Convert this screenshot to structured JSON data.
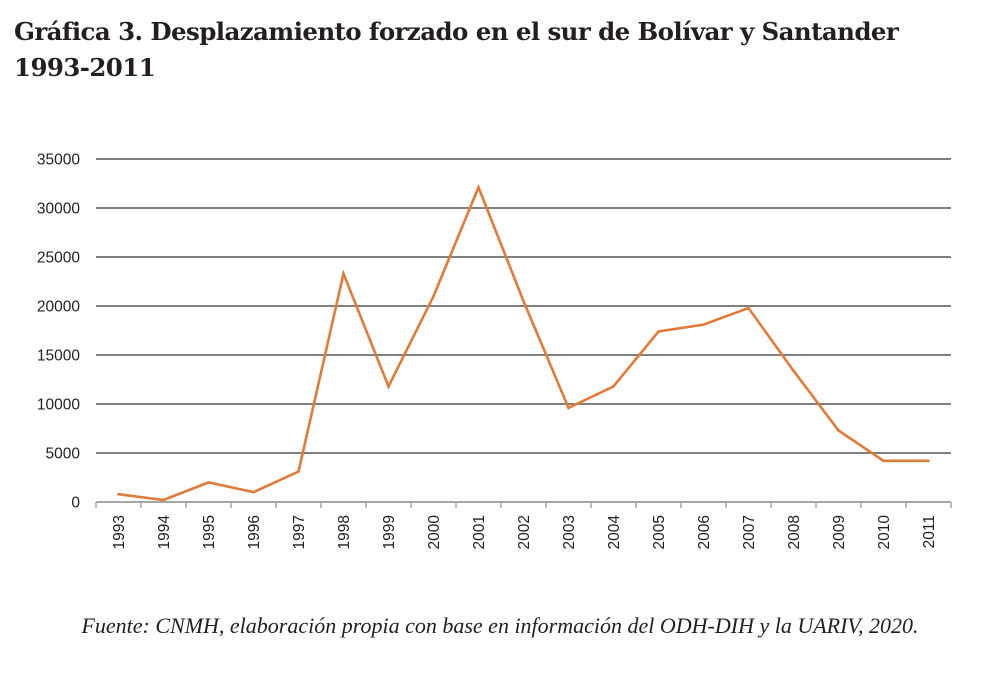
{
  "chart_data": {
    "type": "line",
    "title": "Gráfica 3. Desplazamiento forzado en el sur de Bolívar y Santander 1993-2011",
    "xlabel": "",
    "ylabel": "",
    "x": [
      "1993",
      "1994",
      "1995",
      "1996",
      "1997",
      "1998",
      "1999",
      "2000",
      "2001",
      "2002",
      "2003",
      "2004",
      "2005",
      "2006",
      "2007",
      "2008",
      "2009",
      "2010",
      "2011"
    ],
    "series": [
      {
        "values": [
          800,
          200,
          2000,
          1000,
          3100,
          23300,
          11800,
          21000,
          32100,
          20500,
          9600,
          11800,
          17400,
          18100,
          19800,
          13400,
          7300,
          4200,
          4200
        ]
      }
    ],
    "yticks": [
      "0",
      "5000",
      "10000",
      "15000",
      "20000",
      "25000",
      "30000",
      "35000"
    ],
    "ylim": [
      0,
      35000
    ],
    "grid": true,
    "legend": "none",
    "colors": {
      "line": "#e07b39",
      "grid": "#808080",
      "axis": "#a6a6a6"
    }
  },
  "source_note": "Fuente: CNMH, elaboración propia con base en información del ODH-DIH y la UARIV, 2020."
}
